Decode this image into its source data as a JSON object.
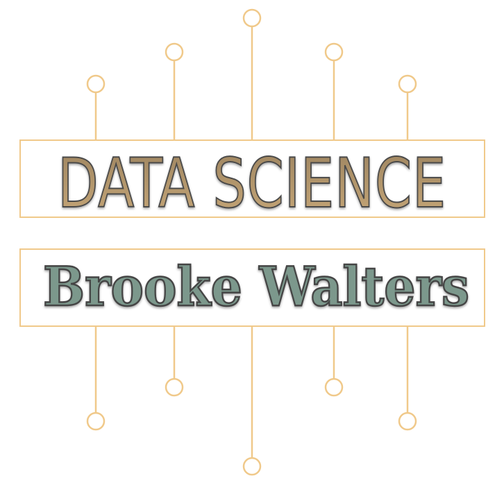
{
  "logo": {
    "title": "DATA SCIENCE",
    "name": "Brooke Walters"
  },
  "colors": {
    "line": "#f0c98a",
    "title_fill_top": "#a58b63",
    "title_fill_bottom": "#c6a777",
    "title_stroke": "#4a4a4a",
    "name_fill": "#7c988c",
    "name_stroke": "#444444",
    "background": "#ffffff"
  }
}
